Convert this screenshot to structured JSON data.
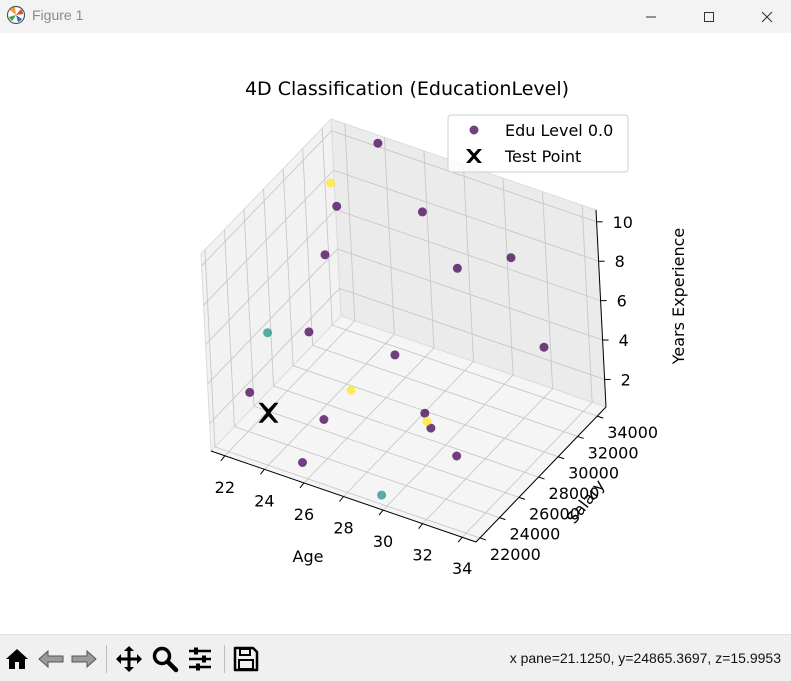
{
  "window": {
    "title": "Figure 1"
  },
  "toolbar": {
    "buttons": [
      {
        "name": "home-button",
        "icon": "home-icon"
      },
      {
        "name": "back-button",
        "icon": "arrow-left-icon"
      },
      {
        "name": "forward-button",
        "icon": "arrow-right-icon"
      },
      {
        "name": "pan-button",
        "icon": "move-icon"
      },
      {
        "name": "zoom-button",
        "icon": "magnifier-icon"
      },
      {
        "name": "configure-subplots-button",
        "icon": "sliders-icon"
      },
      {
        "name": "save-button",
        "icon": "floppy-disk-icon"
      }
    ],
    "coords_text": "x pane=21.1250, y=24865.3697, z=15.9953"
  },
  "chart_data": {
    "type": "scatter",
    "title": "4D Classification (EducationLevel)",
    "xlabel": "Age",
    "ylabel": "Salary",
    "zlabel": "Years Experience",
    "x_ticks": [
      "22",
      "24",
      "26",
      "28",
      "30",
      "32",
      "34"
    ],
    "y_ticks": [
      "22000",
      "24000",
      "26000",
      "28000",
      "30000",
      "32000",
      "34000"
    ],
    "z_ticks": [
      "2",
      "4",
      "6",
      "8",
      "10"
    ],
    "xlim": [
      21.3,
      34.7
    ],
    "ylim": [
      21600,
      34900
    ],
    "zlim": [
      0.6,
      10.6
    ],
    "legend": {
      "placement": "top-right",
      "entries": [
        {
          "label": "Edu Level 0.0",
          "marker": "circle",
          "color": "#440154"
        },
        {
          "label": "Test Point",
          "marker": "X",
          "color": "#000000"
        }
      ]
    },
    "colors": {
      "0": "#440154",
      "1": "#21918c",
      "2": "#fde725",
      "test": "#000000"
    },
    "series": [
      {
        "name": "Edu Level 0.0",
        "level": 0,
        "points": [
          {
            "x": 22.6,
            "y": 23200,
            "z": 3.2
          },
          {
            "x": 25.5,
            "y": 22500,
            "z": 1.0
          },
          {
            "x": 25.5,
            "y": 24800,
            "z": 2.0
          },
          {
            "x": 24.0,
            "y": 26600,
            "z": 5.0
          },
          {
            "x": 22.7,
            "y": 31000,
            "z": 6.2
          },
          {
            "x": 23.8,
            "y": 30300,
            "z": 9.4
          },
          {
            "x": 27.2,
            "y": 28800,
            "z": 3.8
          },
          {
            "x": 28.8,
            "y": 28400,
            "z": 1.6
          },
          {
            "x": 29.5,
            "y": 27600,
            "z": 1.5
          },
          {
            "x": 26.5,
            "y": 33500,
            "z": 8.4
          },
          {
            "x": 28.0,
            "y": 33800,
            "z": 5.9
          },
          {
            "x": 33.4,
            "y": 22600,
            "z": 4.0
          },
          {
            "x": 34.1,
            "y": 30300,
            "z": 5.8
          },
          {
            "x": 32.0,
            "y": 31500,
            "z": 9.0
          },
          {
            "x": 24.5,
            "y": 33300,
            "z": 11.3
          }
        ]
      },
      {
        "name": "",
        "level": 1,
        "points": [
          {
            "x": 21.4,
            "y": 27500,
            "z": 3.6
          },
          {
            "x": 29.7,
            "y": 22100,
            "z": 1.0
          }
        ]
      },
      {
        "name": "",
        "level": 2,
        "points": [
          {
            "x": 21.8,
            "y": 33600,
            "z": 8.2
          },
          {
            "x": 26.6,
            "y": 25500,
            "z": 3.5
          },
          {
            "x": 29.1,
            "y": 28000,
            "z": 1.5
          }
        ]
      }
    ],
    "test_point": {
      "x": 23.3,
      "y": 23600,
      "z": 2.2
    }
  }
}
